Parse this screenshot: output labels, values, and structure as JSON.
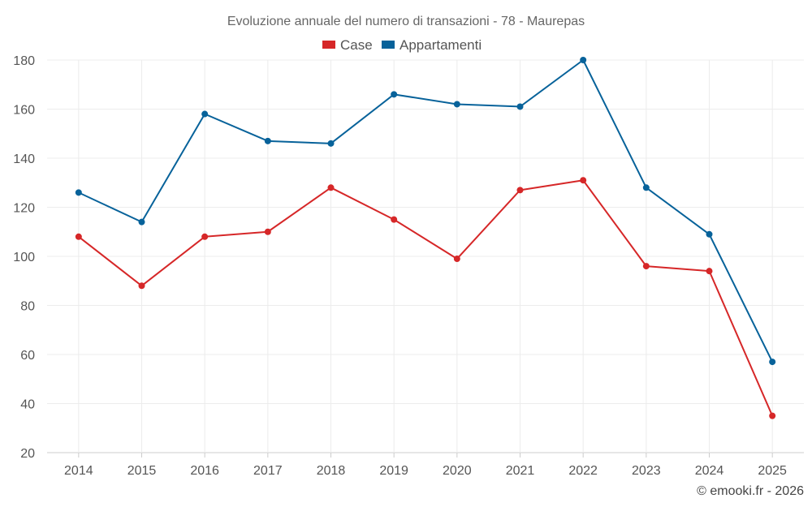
{
  "chart_data": {
    "type": "line",
    "title": "Evoluzione annuale del numero di transazioni - 78 - Maurepas",
    "xlabel": "",
    "ylabel": "",
    "categories": [
      "2014",
      "2015",
      "2016",
      "2017",
      "2018",
      "2019",
      "2020",
      "2021",
      "2022",
      "2023",
      "2024",
      "2025"
    ],
    "ylim": [
      20,
      180
    ],
    "yticks": [
      20,
      40,
      60,
      80,
      100,
      120,
      140,
      160,
      180
    ],
    "grid": true,
    "legend_position": "top-center",
    "series": [
      {
        "name": "Case",
        "color": "#d62728",
        "values": [
          108,
          88,
          108,
          110,
          128,
          115,
          99,
          127,
          131,
          96,
          94,
          35
        ]
      },
      {
        "name": "Appartamenti",
        "color": "#07629a",
        "values": [
          126,
          114,
          158,
          147,
          146,
          166,
          162,
          161,
          180,
          128,
          109,
          57
        ]
      }
    ]
  },
  "credit": "© emooki.fr - 2026"
}
